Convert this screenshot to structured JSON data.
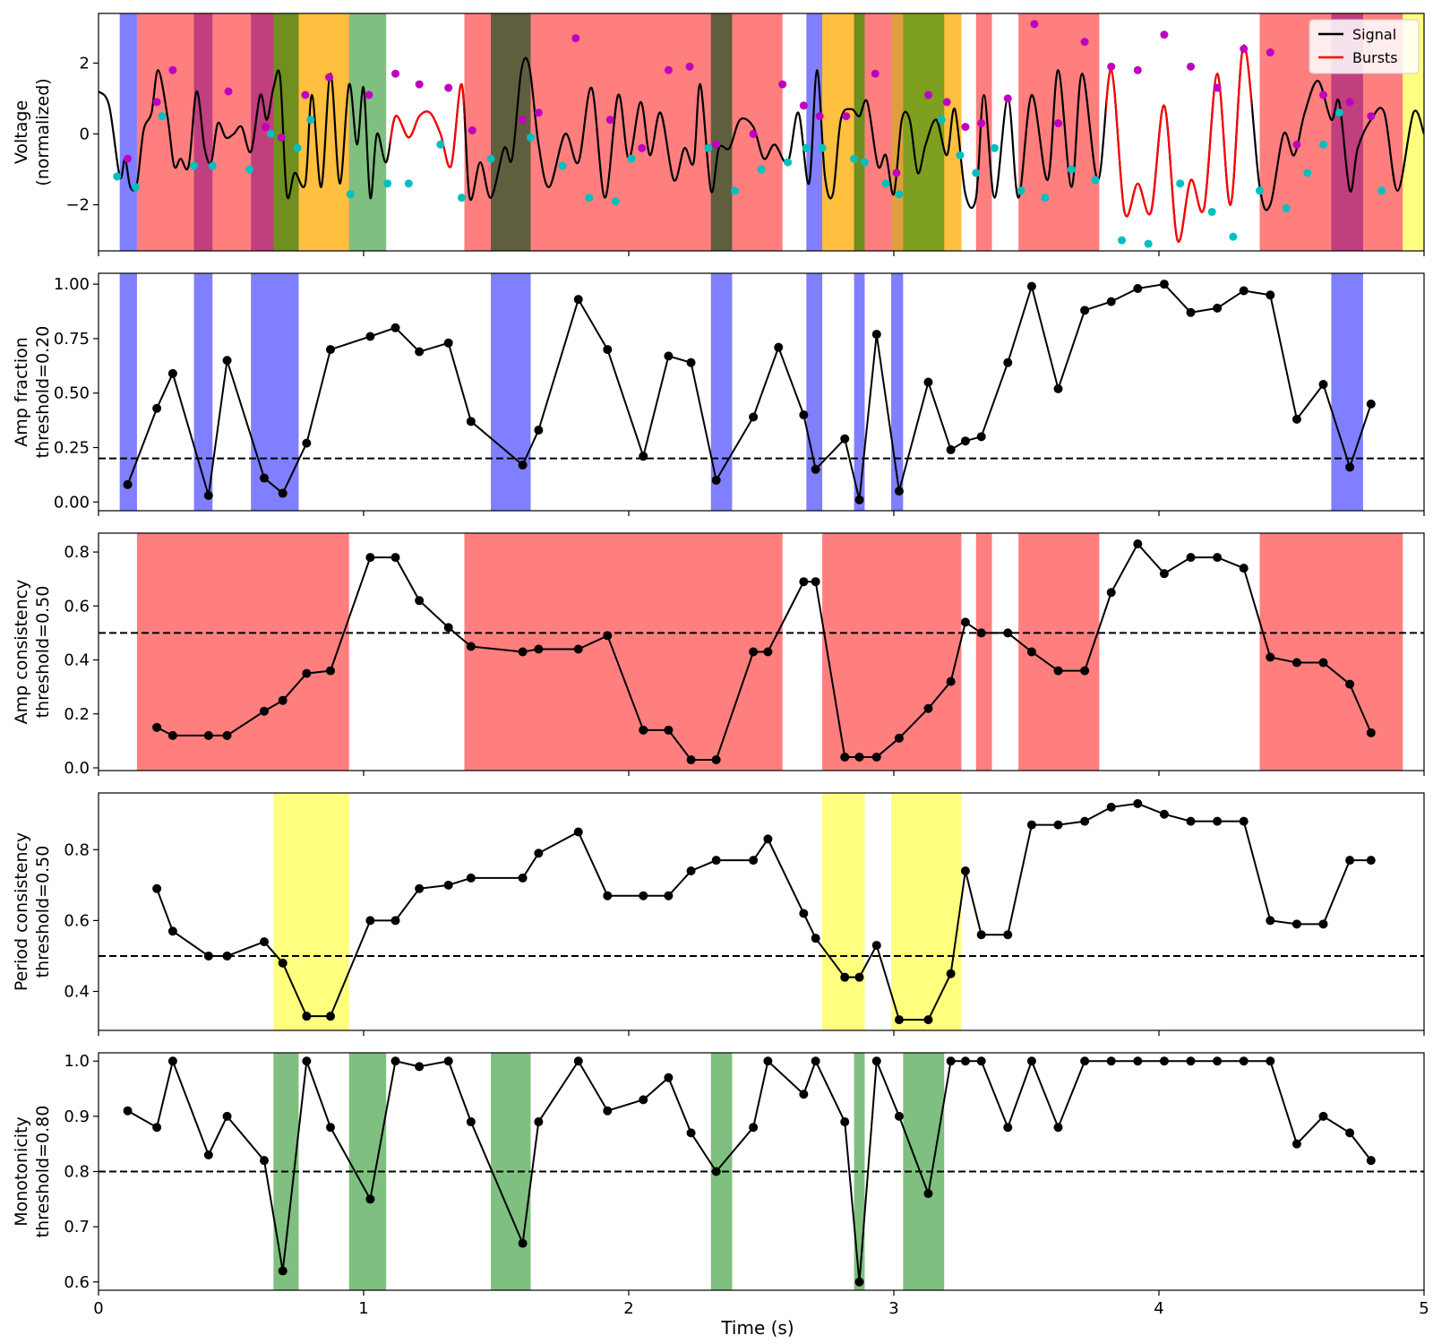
{
  "chart_data": [
    {
      "type": "line",
      "ylabel": "Voltage\n(normalized)",
      "xlim": [
        0,
        5
      ],
      "ylim": [
        -3.3,
        3.4
      ],
      "yticks": [
        -2,
        0,
        2
      ],
      "xticks": [
        0,
        1,
        2,
        3,
        4,
        5
      ],
      "legend": {
        "position": "upper-right",
        "entries": [
          {
            "label": "Signal",
            "color": "#000000"
          },
          {
            "label": "Bursts",
            "color": "#ff0000"
          }
        ]
      },
      "signal": {
        "name": "Signal",
        "x": [
          0.0,
          0.04,
          0.08,
          0.1,
          0.12,
          0.145,
          0.17,
          0.2,
          0.225,
          0.26,
          0.285,
          0.31,
          0.34,
          0.37,
          0.4,
          0.425,
          0.45,
          0.48,
          0.51,
          0.54,
          0.575,
          0.61,
          0.635,
          0.66,
          0.685,
          0.71,
          0.74,
          0.78,
          0.805,
          0.84,
          0.875,
          0.91,
          0.945,
          0.975,
          1.0,
          1.025,
          1.05,
          1.085,
          1.12,
          1.17,
          1.21,
          1.25,
          1.29,
          1.33,
          1.37,
          1.4,
          1.44,
          1.48,
          1.53,
          1.56,
          1.595,
          1.625,
          1.66,
          1.7,
          1.76,
          1.81,
          1.86,
          1.91,
          1.96,
          2.0,
          2.045,
          2.08,
          2.12,
          2.17,
          2.21,
          2.245,
          2.27,
          2.31,
          2.34,
          2.38,
          2.42,
          2.47,
          2.51,
          2.55,
          2.6,
          2.64,
          2.68,
          2.71,
          2.74,
          2.77,
          2.8,
          2.84,
          2.87,
          2.9,
          2.94,
          2.97,
          3.0,
          3.03,
          3.06,
          3.09,
          3.12,
          3.16,
          3.2,
          3.23,
          3.27,
          3.31,
          3.34,
          3.38,
          3.43,
          3.47,
          3.52,
          3.58,
          3.62,
          3.67,
          3.71,
          3.77,
          3.82,
          3.87,
          3.92,
          3.97,
          4.02,
          4.07,
          4.12,
          4.17,
          4.22,
          4.27,
          4.32,
          4.38,
          4.42,
          4.47,
          4.51,
          4.55,
          4.6,
          4.65,
          4.68,
          4.72,
          4.75,
          4.8,
          4.85,
          4.9,
          4.96,
          5.0
        ],
        "y": [
          1.2,
          0.8,
          -1.2,
          -0.7,
          -1.5,
          -1.4,
          0.1,
          0.6,
          1.8,
          0.5,
          -0.9,
          -0.7,
          -0.9,
          1.2,
          -0.4,
          -0.8,
          0.3,
          -0.1,
          0.0,
          0.2,
          -0.5,
          1.1,
          0.4,
          1.3,
          1.6,
          -1.7,
          -1.1,
          -1.4,
          1.1,
          -1.5,
          1.7,
          -1.4,
          1.4,
          -0.3,
          1.3,
          -1.8,
          0.0,
          -0.8,
          0.5,
          -0.1,
          0.5,
          0.6,
          0.0,
          -0.9,
          1.4,
          -1.8,
          -0.8,
          -1.8,
          -0.4,
          -0.7,
          1.8,
          1.9,
          -0.3,
          -1.5,
          0.0,
          -0.8,
          1.3,
          -1.8,
          1.1,
          -0.7,
          0.9,
          -0.6,
          0.6,
          -1.3,
          -0.4,
          -0.8,
          1.4,
          -1.6,
          -0.4,
          -0.4,
          0.4,
          0.2,
          -0.7,
          -0.3,
          -0.8,
          0.6,
          -1.4,
          1.8,
          -1.2,
          -1.7,
          0.4,
          0.7,
          0.5,
          0.9,
          -0.9,
          -0.6,
          -1.7,
          0.4,
          0.4,
          -1.1,
          -0.3,
          0.4,
          -0.6,
          0.7,
          -1.7,
          -1.8,
          1.1,
          -1.8,
          1.0,
          -1.8,
          1.1,
          -1.3,
          1.8,
          -1.5,
          1.7,
          -1.3,
          1.8,
          -2.2,
          -1.4,
          -2.2,
          0.8,
          -3.0,
          -1.3,
          -2.1,
          1.7,
          -2.0,
          2.5,
          -1.5,
          -2.0,
          0.0,
          -0.6,
          0.6,
          1.5,
          0.4,
          0.9,
          -1.6,
          -0.4,
          0.4,
          0.6,
          -1.6,
          0.6,
          0.0
        ]
      },
      "burst_spans": [
        [
          1.1,
          1.38
        ],
        [
          3.8,
          4.35
        ]
      ],
      "peaks_x": [
        0.11,
        0.28,
        0.22,
        0.49,
        0.63,
        0.69,
        0.78,
        0.87,
        1.02,
        1.12,
        1.21,
        1.32,
        1.41,
        1.6,
        1.66,
        1.8,
        1.93,
        2.05,
        2.15,
        2.23,
        2.33,
        2.47,
        2.58,
        2.66,
        2.72,
        2.82,
        2.93,
        3.01,
        3.13,
        3.2,
        3.27,
        3.33,
        3.43,
        3.53,
        3.62,
        3.72,
        3.82,
        3.92,
        4.02,
        4.12,
        4.22,
        4.32,
        4.42,
        4.52,
        4.62,
        4.72,
        4.8
      ],
      "peaks_y": [
        -0.7,
        1.8,
        0.9,
        1.2,
        0.2,
        -0.1,
        1.1,
        1.6,
        1.1,
        1.7,
        1.4,
        1.3,
        0.1,
        0.4,
        0.6,
        2.7,
        0.4,
        -0.4,
        1.8,
        1.9,
        -0.3,
        0.0,
        1.4,
        0.8,
        0.5,
        0.5,
        1.7,
        -1.1,
        1.1,
        0.9,
        0.2,
        0.3,
        1.0,
        3.1,
        0.3,
        2.6,
        1.9,
        1.8,
        2.8,
        1.9,
        1.3,
        2.4,
        2.3,
        -0.3,
        1.1,
        0.9,
        0.5
      ],
      "troughs_x": [
        0.07,
        0.14,
        0.24,
        0.36,
        0.43,
        0.57,
        0.65,
        0.75,
        0.8,
        0.95,
        1.09,
        1.17,
        1.29,
        1.37,
        1.48,
        1.63,
        1.75,
        1.85,
        1.95,
        2.01,
        2.3,
        2.4,
        2.5,
        2.6,
        2.67,
        2.73,
        2.85,
        2.89,
        2.97,
        3.02,
        3.18,
        3.25,
        3.31,
        3.38,
        3.48,
        3.57,
        3.67,
        3.76,
        3.86,
        3.96,
        4.08,
        4.2,
        4.28,
        4.38,
        4.48,
        4.56,
        4.62,
        4.68,
        4.84
      ],
      "troughs_y": [
        -1.2,
        -1.5,
        0.5,
        -0.9,
        -0.9,
        -1.0,
        0.0,
        -0.4,
        0.4,
        -1.7,
        -1.4,
        -1.4,
        -0.3,
        -1.8,
        -0.7,
        -0.1,
        -0.9,
        -1.8,
        -1.9,
        -0.7,
        -0.4,
        -1.6,
        -1.0,
        -0.8,
        -0.4,
        -0.4,
        -0.7,
        -0.8,
        -1.4,
        -1.7,
        0.4,
        -0.6,
        -1.1,
        -0.4,
        -1.6,
        -1.8,
        -1.0,
        -1.3,
        -3.0,
        -3.1,
        -1.4,
        -2.2,
        -2.9,
        -1.6,
        -2.1,
        -1.1,
        -0.3,
        0.6,
        -1.6
      ],
      "spans": [
        {
          "x0": 0.08,
          "x1": 0.145,
          "color": "#0000ff",
          "alpha": 0.5
        },
        {
          "x0": 0.36,
          "x1": 0.43,
          "color": "#0000ff",
          "alpha": 0.5
        },
        {
          "x0": 0.575,
          "x1": 0.755,
          "color": "#0000ff",
          "alpha": 0.5
        },
        {
          "x0": 1.48,
          "x1": 1.63,
          "color": "#0000ff",
          "alpha": 0.5
        },
        {
          "x0": 2.31,
          "x1": 2.39,
          "color": "#0000ff",
          "alpha": 0.5
        },
        {
          "x0": 2.67,
          "x1": 2.73,
          "color": "#0000ff",
          "alpha": 0.5
        },
        {
          "x0": 2.85,
          "x1": 2.89,
          "color": "#0000ff",
          "alpha": 0.5
        },
        {
          "x0": 2.99,
          "x1": 3.035,
          "color": "#0000ff",
          "alpha": 0.5
        },
        {
          "x0": 4.65,
          "x1": 4.77,
          "color": "#0000ff",
          "alpha": 0.5
        },
        {
          "x0": 0.145,
          "x1": 0.945,
          "color": "#ff0000",
          "alpha": 0.5
        },
        {
          "x0": 1.38,
          "x1": 2.58,
          "color": "#ff0000",
          "alpha": 0.5
        },
        {
          "x0": 2.73,
          "x1": 3.255,
          "color": "#ff0000",
          "alpha": 0.5
        },
        {
          "x0": 3.31,
          "x1": 3.37,
          "color": "#ff0000",
          "alpha": 0.5
        },
        {
          "x0": 3.47,
          "x1": 3.775,
          "color": "#ff0000",
          "alpha": 0.5
        },
        {
          "x0": 4.38,
          "x1": 4.92,
          "color": "#ff0000",
          "alpha": 0.5
        },
        {
          "x0": 0.66,
          "x1": 0.945,
          "color": "#ffff00",
          "alpha": 0.5
        },
        {
          "x0": 2.73,
          "x1": 2.89,
          "color": "#ffff00",
          "alpha": 0.5
        },
        {
          "x0": 2.99,
          "x1": 3.255,
          "color": "#ffff00",
          "alpha": 0.5
        },
        {
          "x0": 4.92,
          "x1": 5.0,
          "color": "#ffff00",
          "alpha": 0.5
        },
        {
          "x0": 0.66,
          "x1": 0.755,
          "color": "#008000",
          "alpha": 0.5
        },
        {
          "x0": 0.945,
          "x1": 1.085,
          "color": "#008000",
          "alpha": 0.5
        },
        {
          "x0": 1.48,
          "x1": 1.63,
          "color": "#008000",
          "alpha": 0.5
        },
        {
          "x0": 2.31,
          "x1": 2.39,
          "color": "#008000",
          "alpha": 0.5
        },
        {
          "x0": 2.85,
          "x1": 2.89,
          "color": "#008000",
          "alpha": 0.5
        },
        {
          "x0": 3.035,
          "x1": 3.19,
          "color": "#008000",
          "alpha": 0.5
        }
      ]
    },
    {
      "type": "line",
      "ylabel": "Amp fraction\nthreshold=0.20",
      "threshold": 0.2,
      "ylim": [
        -0.04,
        1.05
      ],
      "yticks": [
        0.0,
        0.25,
        0.5,
        0.75,
        1.0
      ],
      "ytick_labels": [
        "0.00",
        "0.25",
        "0.50",
        "0.75",
        "1.00"
      ],
      "span_color": "#0000ff",
      "spans": [
        [
          0.08,
          0.145
        ],
        [
          0.36,
          0.43
        ],
        [
          0.575,
          0.755
        ],
        [
          1.48,
          1.63
        ],
        [
          2.31,
          2.39
        ],
        [
          2.67,
          2.73
        ],
        [
          2.85,
          2.89
        ],
        [
          2.99,
          3.035
        ],
        [
          4.65,
          4.77
        ]
      ],
      "x": [
        0.11,
        0.22,
        0.28,
        0.415,
        0.485,
        0.625,
        0.695,
        0.785,
        0.875,
        1.025,
        1.12,
        1.21,
        1.32,
        1.405,
        1.6,
        1.66,
        1.81,
        1.92,
        2.055,
        2.15,
        2.235,
        2.33,
        2.47,
        2.565,
        2.66,
        2.705,
        2.815,
        2.87,
        2.935,
        3.02,
        3.13,
        3.215,
        3.27,
        3.33,
        3.43,
        3.52,
        3.62,
        3.72,
        3.82,
        3.92,
        4.02,
        4.12,
        4.22,
        4.32,
        4.42,
        4.52,
        4.62,
        4.72,
        4.8
      ],
      "y": [
        0.08,
        0.43,
        0.59,
        0.03,
        0.65,
        0.11,
        0.04,
        0.27,
        0.7,
        0.76,
        0.8,
        0.69,
        0.73,
        0.37,
        0.17,
        0.33,
        0.93,
        0.7,
        0.21,
        0.67,
        0.64,
        0.1,
        0.39,
        0.71,
        0.4,
        0.15,
        0.29,
        0.01,
        0.77,
        0.05,
        0.55,
        0.24,
        0.28,
        0.3,
        0.64,
        0.99,
        0.52,
        0.88,
        0.92,
        0.98,
        1.0,
        0.87,
        0.89,
        0.97,
        0.95,
        0.38,
        0.54,
        0.16,
        0.45
      ]
    },
    {
      "type": "line",
      "ylabel": "Amp consistency\nthreshold=0.50",
      "threshold": 0.5,
      "ylim": [
        -0.01,
        0.87
      ],
      "yticks": [
        0.0,
        0.2,
        0.4,
        0.6,
        0.8
      ],
      "ytick_labels": [
        "0.0",
        "0.2",
        "0.4",
        "0.6",
        "0.8"
      ],
      "span_color": "#ff0000",
      "spans": [
        [
          0.145,
          0.945
        ],
        [
          1.38,
          2.58
        ],
        [
          2.73,
          3.255
        ],
        [
          3.31,
          3.37
        ],
        [
          3.47,
          3.775
        ],
        [
          4.38,
          4.92
        ]
      ],
      "x": [
        0.22,
        0.28,
        0.415,
        0.485,
        0.625,
        0.695,
        0.785,
        0.875,
        1.025,
        1.12,
        1.21,
        1.32,
        1.405,
        1.6,
        1.66,
        1.81,
        1.92,
        2.055,
        2.15,
        2.235,
        2.33,
        2.47,
        2.525,
        2.66,
        2.705,
        2.815,
        2.87,
        2.935,
        3.02,
        3.13,
        3.215,
        3.27,
        3.33,
        3.43,
        3.52,
        3.62,
        3.72,
        3.82,
        3.92,
        4.02,
        4.12,
        4.22,
        4.32,
        4.42,
        4.52,
        4.62,
        4.72,
        4.8
      ],
      "y": [
        0.15,
        0.12,
        0.12,
        0.12,
        0.21,
        0.25,
        0.35,
        0.36,
        0.78,
        0.78,
        0.62,
        0.52,
        0.45,
        0.43,
        0.44,
        0.44,
        0.49,
        0.14,
        0.14,
        0.03,
        0.03,
        0.43,
        0.43,
        0.69,
        0.69,
        0.04,
        0.04,
        0.04,
        0.11,
        0.22,
        0.32,
        0.54,
        0.5,
        0.5,
        0.43,
        0.36,
        0.36,
        0.65,
        0.83,
        0.72,
        0.78,
        0.78,
        0.74,
        0.41,
        0.39,
        0.39,
        0.31,
        0.13
      ]
    },
    {
      "type": "line",
      "ylabel": "Period consistency\nthreshold=0.50",
      "threshold": 0.5,
      "ylim": [
        0.29,
        0.96
      ],
      "yticks": [
        0.4,
        0.6,
        0.8
      ],
      "ytick_labels": [
        "0.4",
        "0.6",
        "0.8"
      ],
      "span_color": "#ffff00",
      "spans": [
        [
          0.66,
          0.945
        ],
        [
          2.73,
          2.89
        ],
        [
          2.99,
          3.255
        ]
      ],
      "x": [
        0.22,
        0.28,
        0.415,
        0.485,
        0.625,
        0.695,
        0.785,
        0.875,
        1.025,
        1.12,
        1.21,
        1.32,
        1.405,
        1.6,
        1.66,
        1.81,
        1.92,
        2.055,
        2.15,
        2.235,
        2.33,
        2.47,
        2.525,
        2.66,
        2.705,
        2.815,
        2.87,
        2.935,
        3.02,
        3.13,
        3.215,
        3.27,
        3.33,
        3.43,
        3.52,
        3.62,
        3.72,
        3.82,
        3.92,
        4.02,
        4.12,
        4.22,
        4.32,
        4.42,
        4.52,
        4.62,
        4.72,
        4.8
      ],
      "y": [
        0.69,
        0.57,
        0.5,
        0.5,
        0.54,
        0.48,
        0.33,
        0.33,
        0.6,
        0.6,
        0.69,
        0.7,
        0.72,
        0.72,
        0.79,
        0.85,
        0.67,
        0.67,
        0.67,
        0.74,
        0.77,
        0.77,
        0.83,
        0.62,
        0.55,
        0.44,
        0.44,
        0.53,
        0.32,
        0.32,
        0.45,
        0.74,
        0.56,
        0.56,
        0.87,
        0.87,
        0.88,
        0.92,
        0.93,
        0.9,
        0.88,
        0.88,
        0.88,
        0.6,
        0.59,
        0.59,
        0.77,
        0.77
      ]
    },
    {
      "type": "line",
      "ylabel": "Monotonicity\nthreshold=0.80",
      "xlabel": "Time (s)",
      "threshold": 0.8,
      "ylim": [
        0.585,
        1.015
      ],
      "yticks": [
        0.6,
        0.7,
        0.8,
        0.9,
        1.0
      ],
      "ytick_labels": [
        "0.6",
        "0.7",
        "0.8",
        "0.9",
        "1.0"
      ],
      "span_color": "#008000",
      "spans": [
        [
          0.66,
          0.755
        ],
        [
          0.945,
          1.085
        ],
        [
          1.48,
          1.63
        ],
        [
          2.31,
          2.39
        ],
        [
          2.85,
          2.89
        ],
        [
          3.035,
          3.19
        ]
      ],
      "x": [
        0.11,
        0.22,
        0.28,
        0.415,
        0.485,
        0.625,
        0.695,
        0.785,
        0.875,
        1.025,
        1.12,
        1.21,
        1.32,
        1.405,
        1.6,
        1.66,
        1.81,
        1.92,
        2.055,
        2.15,
        2.235,
        2.33,
        2.47,
        2.525,
        2.66,
        2.705,
        2.815,
        2.87,
        2.935,
        3.02,
        3.13,
        3.215,
        3.27,
        3.33,
        3.43,
        3.52,
        3.62,
        3.72,
        3.82,
        3.92,
        4.02,
        4.12,
        4.22,
        4.32,
        4.42,
        4.52,
        4.62,
        4.72,
        4.8
      ],
      "y": [
        0.91,
        0.88,
        1.0,
        0.83,
        0.9,
        0.82,
        0.62,
        1.0,
        0.88,
        0.75,
        1.0,
        0.99,
        1.0,
        0.89,
        0.67,
        0.89,
        1.0,
        0.91,
        0.93,
        0.97,
        0.87,
        0.8,
        0.88,
        1.0,
        0.94,
        1.0,
        0.89,
        0.6,
        1.0,
        0.9,
        0.76,
        1.0,
        1.0,
        1.0,
        0.88,
        1.0,
        0.88,
        1.0,
        1.0,
        1.0,
        1.0,
        1.0,
        1.0,
        1.0,
        1.0,
        0.85,
        0.9,
        0.87,
        0.82
      ]
    }
  ]
}
